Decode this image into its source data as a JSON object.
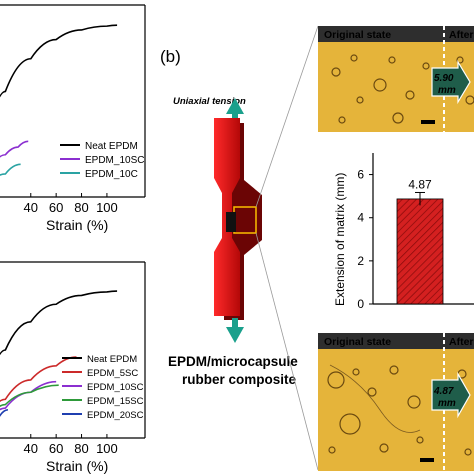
{
  "panel_b_label": "(b)",
  "specimen": {
    "tension_label": "Uniaxial tension",
    "composite_label_line1": "EPDM/microcapsule",
    "composite_label_line2": "rubber composite",
    "colors": {
      "specimen": "#e41212",
      "arrow": "#1aa08c",
      "label": "#33115e"
    }
  },
  "micrographs": [
    {
      "header_left": "Original state",
      "header_right": "After",
      "arrow_value": "5.90",
      "arrow_unit": "mm",
      "bg": "#e8b82e"
    },
    {
      "header_left": "Original state",
      "header_right": "After",
      "arrow_value": "4.87",
      "arrow_unit": "mm",
      "bg": "#e8b82e"
    }
  ],
  "chart_data": [
    {
      "type": "line",
      "xlabel": "Strain (%)",
      "ylabel": "",
      "xticks": [
        40,
        60,
        80,
        100
      ],
      "xlim": [
        0,
        130
      ],
      "ylim": [
        0,
        10
      ],
      "legend_position": "bottom-right",
      "series": [
        {
          "name": "Neat EPDM",
          "color": "#000000",
          "x": [
            0,
            20,
            40,
            60,
            80,
            100,
            108
          ],
          "y": [
            0,
            5.5,
            7.2,
            8.2,
            8.7,
            8.9,
            8.95
          ]
        },
        {
          "name": "EPDM_10SC",
          "color": "#8b2fd0",
          "x": [
            0,
            20,
            30,
            38
          ],
          "y": [
            0,
            2.2,
            2.6,
            2.9
          ]
        },
        {
          "name": "EPDM_10C",
          "color": "#2aa3a3",
          "x": [
            0,
            20,
            32
          ],
          "y": [
            0,
            1.2,
            1.7
          ]
        }
      ]
    },
    {
      "type": "line",
      "xlabel": "Strain (%)",
      "ylabel": "",
      "xticks": [
        40,
        60,
        80,
        100
      ],
      "xlim": [
        0,
        130
      ],
      "ylim": [
        0,
        10
      ],
      "legend_position": "bottom-right",
      "series": [
        {
          "name": "Neat EPDM",
          "color": "#000000",
          "x": [
            0,
            20,
            40,
            60,
            80,
            100,
            108
          ],
          "y": [
            0,
            5.0,
            6.6,
            7.6,
            8.1,
            8.3,
            8.35
          ]
        },
        {
          "name": "EPDM_5SC",
          "color": "#cc2a2a",
          "x": [
            0,
            20,
            40,
            60,
            76
          ],
          "y": [
            0,
            2.2,
            3.3,
            4.1,
            4.6
          ]
        },
        {
          "name": "EPDM_10SC",
          "color": "#8b2fd0",
          "x": [
            0,
            20,
            40,
            60
          ],
          "y": [
            0,
            1.7,
            2.6,
            3.2
          ]
        },
        {
          "name": "EPDM_15SC",
          "color": "#2e9a3a",
          "x": [
            0,
            20,
            40,
            62
          ],
          "y": [
            0,
            1.9,
            2.6,
            3.0
          ]
        },
        {
          "name": "EPDM_20SC",
          "color": "#1f3fb0",
          "x": [
            0,
            15,
            22
          ],
          "y": [
            0,
            1.2,
            1.6
          ]
        }
      ]
    },
    {
      "type": "bar",
      "ylabel": "Extension of matrix (mm)",
      "yticks": [
        0,
        2,
        4,
        6
      ],
      "ylim": [
        0,
        7
      ],
      "values": [
        4.87
      ],
      "data_labels": [
        "4.87"
      ],
      "error": [
        0.3
      ],
      "bar_color": "#d42020"
    }
  ]
}
